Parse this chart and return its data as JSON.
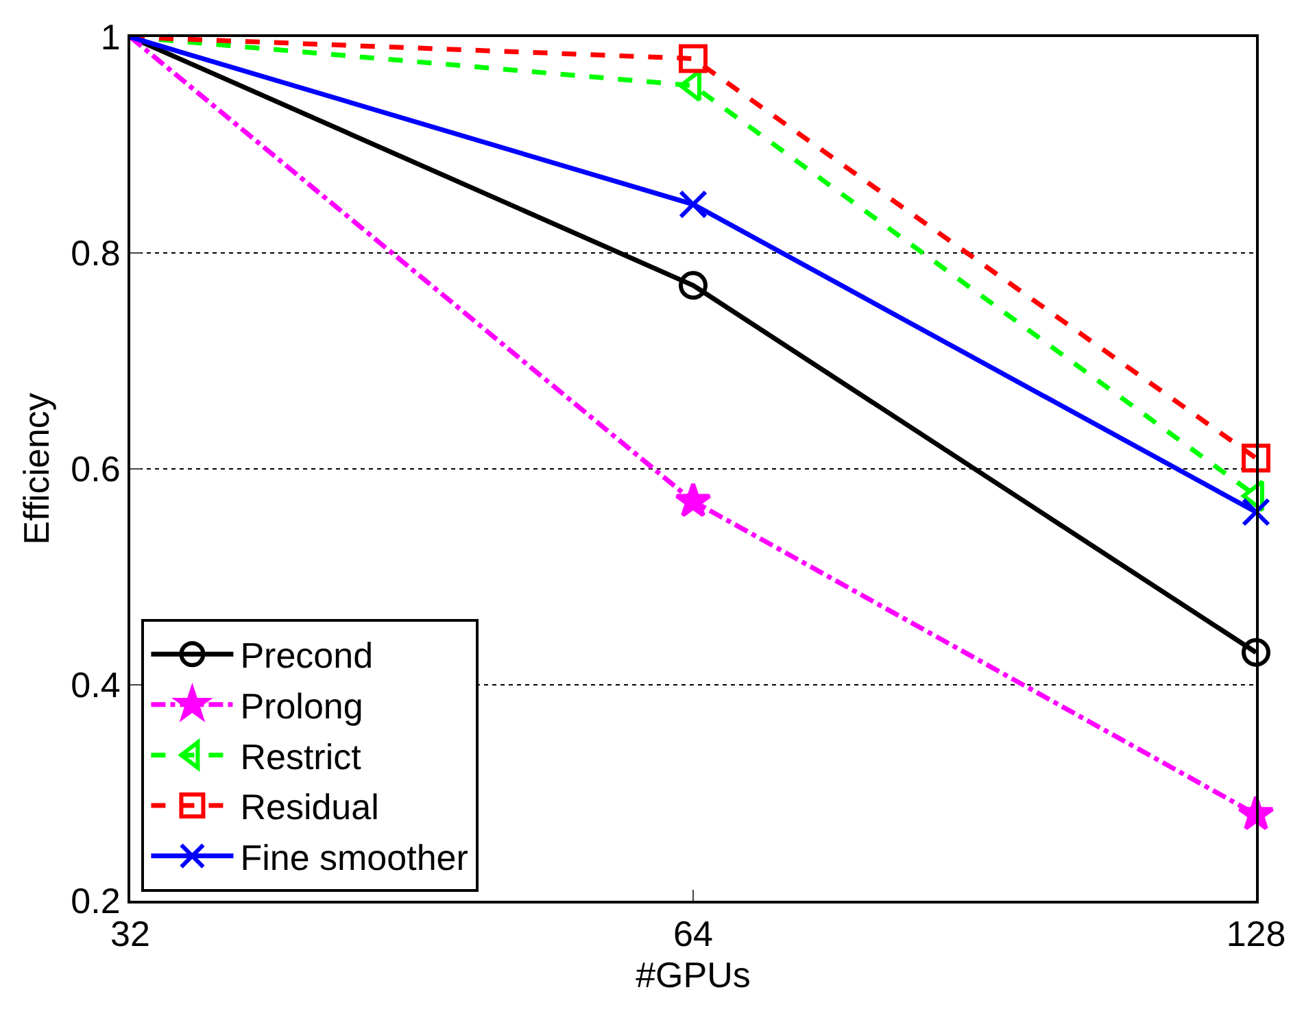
{
  "chart_data": {
    "type": "line",
    "xlabel": "#GPUs",
    "ylabel": "Efficiency",
    "x": [
      32,
      64,
      128
    ],
    "log": "x",
    "xlim": [
      32,
      128
    ],
    "xticks": [
      32,
      64,
      128
    ],
    "ylim": [
      0.2,
      1
    ],
    "yticks": [
      0.2,
      0.4,
      0.6,
      0.8,
      1
    ],
    "grid": "y",
    "legend": "bottom left",
    "series": [
      {
        "name": "Precond",
        "color": "#000000",
        "values": [
          1,
          0.77,
          0.43
        ],
        "marker": "circle",
        "line_style": "solid"
      },
      {
        "name": "Prolong",
        "color": "#ff00ff",
        "values": [
          1,
          0.57,
          0.28
        ],
        "marker": "star",
        "line_style": "dashdot"
      },
      {
        "name": "Restrict",
        "color": "#00ff00",
        "values": [
          1,
          0.955,
          0.575
        ],
        "marker": "triangle",
        "line_style": "dashed"
      },
      {
        "name": "Residual",
        "color": "#ff0000",
        "values": [
          1,
          0.98,
          0.61
        ],
        "marker": "square",
        "line_style": "dashed"
      },
      {
        "name": "Fine smoother",
        "color": "#0000ff",
        "values": [
          1,
          0.845,
          0.56
        ],
        "marker": "cross",
        "line_style": "solid"
      }
    ]
  }
}
